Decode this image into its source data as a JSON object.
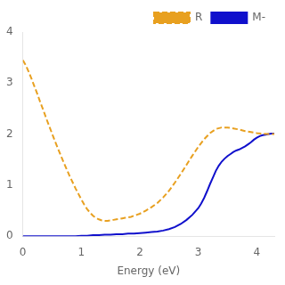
{
  "chart_data": {
    "type": "line",
    "xlabel": "Energy (eV)",
    "xlim": [
      0,
      4.3
    ],
    "ylim": [
      0.0,
      4.0
    ],
    "xticks": [
      0,
      1,
      2,
      3,
      4
    ],
    "yticks": [
      0,
      1,
      2,
      3,
      4
    ],
    "grid": false,
    "legend": "upper right",
    "series": [
      {
        "name": "R",
        "color": "#E8A020",
        "line_style": "dashed",
        "x": [
          0.0,
          0.05,
          0.1,
          0.15,
          0.2,
          0.25,
          0.3,
          0.35,
          0.4,
          0.45,
          0.5,
          0.55,
          0.6,
          0.65,
          0.7,
          0.75,
          0.8,
          0.85,
          0.9,
          0.95,
          1.0,
          1.05,
          1.1,
          1.15,
          1.2,
          1.25,
          1.3,
          1.35,
          1.4,
          1.45,
          1.5,
          1.55,
          1.6,
          1.65,
          1.7,
          1.75,
          1.8,
          1.85,
          1.9,
          1.95,
          2.0,
          2.1,
          2.2,
          2.3,
          2.4,
          2.5,
          2.6,
          2.7,
          2.8,
          2.9,
          3.0,
          3.1,
          3.2,
          3.3,
          3.4,
          3.5,
          3.6,
          3.7,
          3.8,
          3.9,
          4.0,
          4.1,
          4.2,
          4.3
        ],
        "values": [
          3.45,
          3.35,
          3.22,
          3.08,
          2.93,
          2.78,
          2.62,
          2.47,
          2.31,
          2.16,
          2.01,
          1.86,
          1.72,
          1.58,
          1.44,
          1.31,
          1.18,
          1.06,
          0.94,
          0.83,
          0.72,
          0.62,
          0.53,
          0.46,
          0.4,
          0.36,
          0.33,
          0.31,
          0.3,
          0.3,
          0.31,
          0.32,
          0.33,
          0.34,
          0.35,
          0.36,
          0.37,
          0.38,
          0.4,
          0.42,
          0.44,
          0.5,
          0.57,
          0.65,
          0.76,
          0.89,
          1.05,
          1.22,
          1.4,
          1.58,
          1.75,
          1.9,
          2.02,
          2.1,
          2.13,
          2.13,
          2.11,
          2.09,
          2.06,
          2.04,
          2.02,
          2.01,
          2.0,
          2.0
        ]
      },
      {
        "name": "M-",
        "color": "#1010CC",
        "line_style": "solid",
        "x": [
          0.0,
          0.1,
          0.2,
          0.3,
          0.4,
          0.5,
          0.6,
          0.7,
          0.8,
          0.9,
          1.0,
          1.1,
          1.2,
          1.3,
          1.4,
          1.5,
          1.6,
          1.7,
          1.8,
          1.9,
          2.0,
          2.1,
          2.2,
          2.3,
          2.4,
          2.5,
          2.6,
          2.7,
          2.8,
          2.9,
          3.0,
          3.05,
          3.1,
          3.15,
          3.2,
          3.25,
          3.3,
          3.35,
          3.4,
          3.45,
          3.5,
          3.55,
          3.6,
          3.65,
          3.7,
          3.75,
          3.8,
          3.85,
          3.9,
          3.95,
          4.0,
          4.05,
          4.1,
          4.15,
          4.2,
          4.25,
          4.3
        ],
        "values": [
          0.0,
          0.0,
          0.0,
          0.0,
          0.0,
          0.0,
          0.0,
          0.0,
          0.0,
          0.0,
          0.01,
          0.01,
          0.02,
          0.02,
          0.03,
          0.03,
          0.04,
          0.04,
          0.05,
          0.05,
          0.06,
          0.07,
          0.08,
          0.09,
          0.11,
          0.14,
          0.18,
          0.24,
          0.32,
          0.42,
          0.55,
          0.64,
          0.75,
          0.88,
          1.02,
          1.15,
          1.28,
          1.38,
          1.46,
          1.52,
          1.57,
          1.61,
          1.65,
          1.68,
          1.7,
          1.73,
          1.76,
          1.8,
          1.84,
          1.89,
          1.93,
          1.96,
          1.98,
          1.99,
          2.0,
          2.01,
          2.01
        ]
      }
    ]
  }
}
